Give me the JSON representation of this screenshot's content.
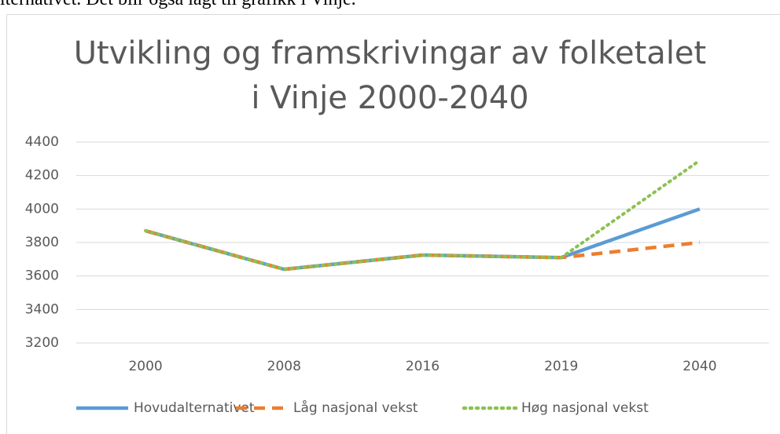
{
  "text_above": "lternativet. Det blir også lagt til grafikk i Vinje.",
  "chart_data": {
    "type": "line",
    "title": [
      "Utvikling og framskrivingar av folketalet",
      "i Vinje 2000-2040"
    ],
    "categories": [
      "2000",
      "2008",
      "2016",
      "2019",
      "2040"
    ],
    "series": [
      {
        "name": "Hovudalternativet",
        "color": "#5b9bd5",
        "dash": "solid",
        "values": [
          3870,
          3640,
          3725,
          3710,
          4000
        ]
      },
      {
        "name": "Låg nasjonal vekst",
        "color": "#ed7d31",
        "dash": "dashed",
        "values": [
          3870,
          3640,
          3725,
          3710,
          3800
        ]
      },
      {
        "name": "Høg nasjonal vekst",
        "color": "#8cc152",
        "dash": "dotted",
        "values": [
          3870,
          3640,
          3725,
          3710,
          4290
        ]
      }
    ],
    "ylim": [
      3200,
      4400
    ],
    "yticks": [
      3200,
      3400,
      3600,
      3800,
      4000,
      4200,
      4400
    ],
    "grid": true,
    "legend": "bottom"
  }
}
